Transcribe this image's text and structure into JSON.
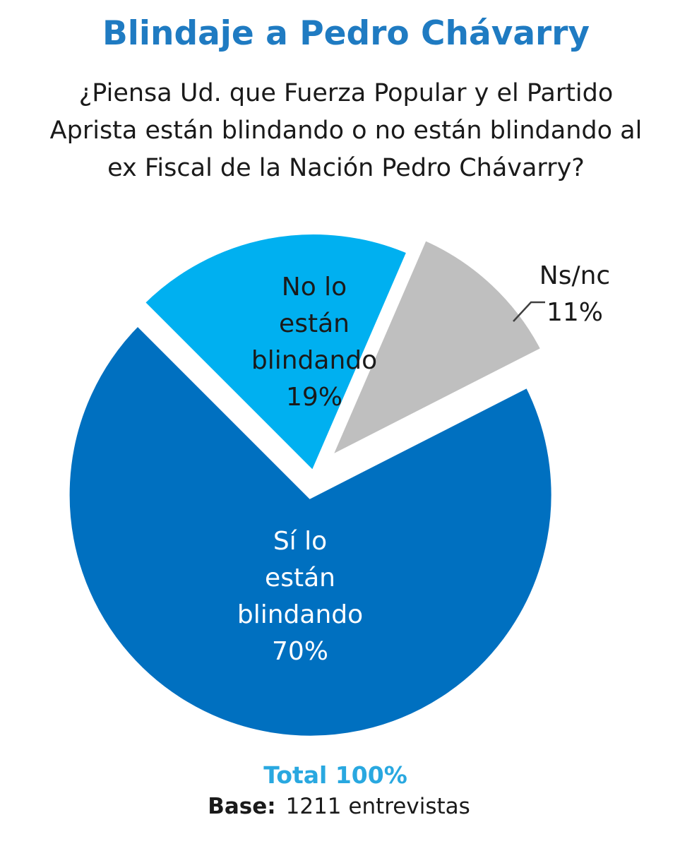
{
  "chart_data": {
    "type": "pie",
    "title": "Blindaje a Pedro Chávarry",
    "subtitle_lines": [
      "¿Piensa Ud. que Fuerza Popular y el Partido",
      "Aprista están blindando o no están blindando al",
      "ex Fiscal de la Nación Pedro Chávarry?"
    ],
    "slices": [
      {
        "label_lines": [
          "No lo",
          "están",
          "blindando"
        ],
        "value": 19,
        "value_text": "19%",
        "color": "#00b0f0",
        "label_color": "#1a1a1a"
      },
      {
        "label_lines": [
          "Ns/nc"
        ],
        "value": 11,
        "value_text": "11%",
        "color": "#bfbfbf",
        "label_color": "#1a1a1a"
      },
      {
        "label_lines": [
          "Sí lo",
          "están",
          "blindando"
        ],
        "value": 70,
        "value_text": "70%",
        "color": "#0070c0",
        "label_color": "#ffffff"
      }
    ],
    "total_text": "Total 100%",
    "base_label": "Base:",
    "base_value": "1211 entrevistas"
  }
}
